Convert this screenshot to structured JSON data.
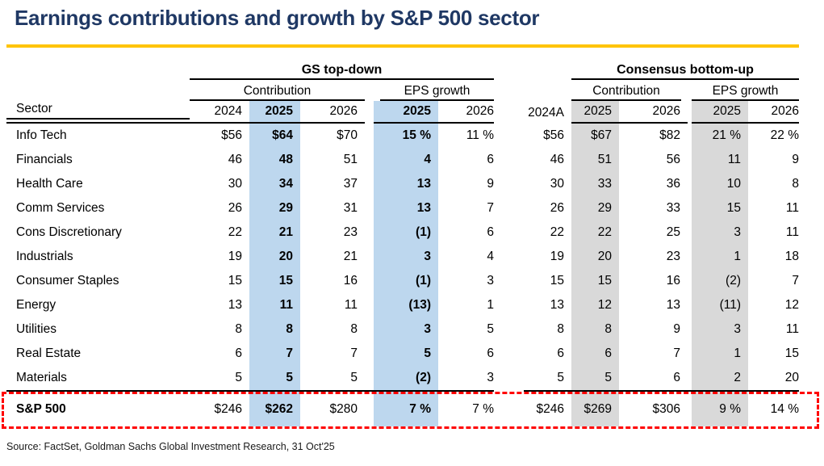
{
  "title": "Earnings contributions and growth by S&P 500 sector",
  "source": "Source: FactSet, Goldman Sachs Global Investment Research, 31 Oct'25",
  "header": {
    "group_gs": "GS top-down",
    "group_consensus": "Consensus bottom-up",
    "gs_sub_contribution": "Contribution",
    "gs_sub_eps_growth": "EPS growth",
    "cons_sub_contribution": "Contribution",
    "cons_sub_eps_growth": "EPS growth",
    "sector_label": "Sector",
    "gs_contribution_years": [
      "2024",
      "2025",
      "2026"
    ],
    "gs_eps_years": [
      "2025",
      "2026"
    ],
    "actual_year": "2024A",
    "cons_contribution_years": [
      "2025",
      "2026"
    ],
    "cons_eps_years": [
      "2025",
      "2026"
    ]
  },
  "table": {
    "rows": [
      {
        "sector": "Info Tech",
        "gs": [
          "$56",
          "$64",
          "$70"
        ],
        "gs_eps": [
          "15 %",
          "11 %"
        ],
        "actual": "$56",
        "cons": [
          "$67",
          "$82"
        ],
        "cons_eps": [
          "21 %",
          "22 %"
        ]
      },
      {
        "sector": "Financials",
        "gs": [
          "46",
          "48",
          "51"
        ],
        "gs_eps": [
          "4",
          "6"
        ],
        "actual": "46",
        "cons": [
          "51",
          "56"
        ],
        "cons_eps": [
          "11",
          "9"
        ]
      },
      {
        "sector": "Health Care",
        "gs": [
          "30",
          "34",
          "37"
        ],
        "gs_eps": [
          "13",
          "9"
        ],
        "actual": "30",
        "cons": [
          "33",
          "36"
        ],
        "cons_eps": [
          "10",
          "8"
        ]
      },
      {
        "sector": "Comm Services",
        "gs": [
          "26",
          "29",
          "31"
        ],
        "gs_eps": [
          "13",
          "7"
        ],
        "actual": "26",
        "cons": [
          "29",
          "33"
        ],
        "cons_eps": [
          "15",
          "11"
        ]
      },
      {
        "sector": "Cons Discretionary",
        "gs": [
          "22",
          "21",
          "23"
        ],
        "gs_eps": [
          "(1)",
          "6"
        ],
        "actual": "22",
        "cons": [
          "22",
          "25"
        ],
        "cons_eps": [
          "3",
          "11"
        ]
      },
      {
        "sector": "Industrials",
        "gs": [
          "19",
          "20",
          "21"
        ],
        "gs_eps": [
          "3",
          "4"
        ],
        "actual": "19",
        "cons": [
          "20",
          "23"
        ],
        "cons_eps": [
          "1",
          "18"
        ]
      },
      {
        "sector": "Consumer Staples",
        "gs": [
          "15",
          "15",
          "16"
        ],
        "gs_eps": [
          "(1)",
          "3"
        ],
        "actual": "15",
        "cons": [
          "15",
          "16"
        ],
        "cons_eps": [
          "(2)",
          "7"
        ]
      },
      {
        "sector": "Energy",
        "gs": [
          "13",
          "11",
          "11"
        ],
        "gs_eps": [
          "(13)",
          "1"
        ],
        "actual": "13",
        "cons": [
          "12",
          "13"
        ],
        "cons_eps": [
          "(11)",
          "12"
        ]
      },
      {
        "sector": "Utilities",
        "gs": [
          "8",
          "8",
          "8"
        ],
        "gs_eps": [
          "3",
          "5"
        ],
        "actual": "8",
        "cons": [
          "8",
          "9"
        ],
        "cons_eps": [
          "3",
          "11"
        ]
      },
      {
        "sector": "Real Estate",
        "gs": [
          "6",
          "7",
          "7"
        ],
        "gs_eps": [
          "5",
          "6"
        ],
        "actual": "6",
        "cons": [
          "6",
          "7"
        ],
        "cons_eps": [
          "1",
          "15"
        ]
      },
      {
        "sector": "Materials",
        "gs": [
          "5",
          "5",
          "5"
        ],
        "gs_eps": [
          "(2)",
          "3"
        ],
        "actual": "5",
        "cons": [
          "5",
          "6"
        ],
        "cons_eps": [
          "2",
          "20"
        ]
      }
    ],
    "total": {
      "sector": "S&P 500",
      "gs": [
        "$246",
        "$262",
        "$280"
      ],
      "gs_eps": [
        "7 %",
        "7 %"
      ],
      "actual": "$246",
      "cons": [
        "$269",
        "$306"
      ],
      "cons_eps": [
        "9 %",
        "14 %"
      ]
    }
  },
  "colors": {
    "title_navy": "#1F3864",
    "gold_rule": "#FFC400",
    "highlight_blue": "#BDD7EE",
    "highlight_gray": "#D9D9D9",
    "dashed_red": "#FF0000",
    "rule_black": "#000000"
  },
  "chart_data": {
    "type": "table",
    "title": "Earnings contributions and growth by S&P 500 sector",
    "columns": [
      "Sector",
      "GS top-down Contribution 2024 ($)",
      "GS top-down Contribution 2025 ($)",
      "GS top-down Contribution 2026 ($)",
      "GS top-down EPS growth 2025 (%)",
      "GS top-down EPS growth 2026 (%)",
      "2024A ($)",
      "Consensus bottom-up Contribution 2025 ($)",
      "Consensus bottom-up Contribution 2026 ($)",
      "Consensus bottom-up EPS growth 2025 (%)",
      "Consensus bottom-up EPS growth 2026 (%)"
    ],
    "rows": [
      [
        "Info Tech",
        56,
        64,
        70,
        15,
        11,
        56,
        67,
        82,
        21,
        22
      ],
      [
        "Financials",
        46,
        48,
        51,
        4,
        6,
        46,
        51,
        56,
        11,
        9
      ],
      [
        "Health Care",
        30,
        34,
        37,
        13,
        9,
        30,
        33,
        36,
        10,
        8
      ],
      [
        "Comm Services",
        26,
        29,
        31,
        13,
        7,
        26,
        29,
        33,
        15,
        11
      ],
      [
        "Cons Discretionary",
        22,
        21,
        23,
        -1,
        6,
        22,
        22,
        25,
        3,
        11
      ],
      [
        "Industrials",
        19,
        20,
        21,
        3,
        4,
        19,
        20,
        23,
        1,
        18
      ],
      [
        "Consumer Staples",
        15,
        15,
        16,
        -1,
        3,
        15,
        15,
        16,
        -2,
        7
      ],
      [
        "Energy",
        13,
        11,
        11,
        -13,
        1,
        13,
        12,
        13,
        -11,
        12
      ],
      [
        "Utilities",
        8,
        8,
        8,
        3,
        5,
        8,
        8,
        9,
        3,
        11
      ],
      [
        "Real Estate",
        6,
        7,
        7,
        5,
        6,
        6,
        6,
        7,
        1,
        15
      ],
      [
        "Materials",
        5,
        5,
        5,
        -2,
        3,
        5,
        5,
        6,
        2,
        20
      ]
    ],
    "total_row": [
      "S&P 500",
      246,
      262,
      280,
      7,
      7,
      246,
      269,
      306,
      9,
      14
    ],
    "notes": "Negative values shown in parentheses; 2025 columns highlighted (blue = GS top-down, gray = consensus); S&P 500 total row outlined with red dashed box."
  }
}
